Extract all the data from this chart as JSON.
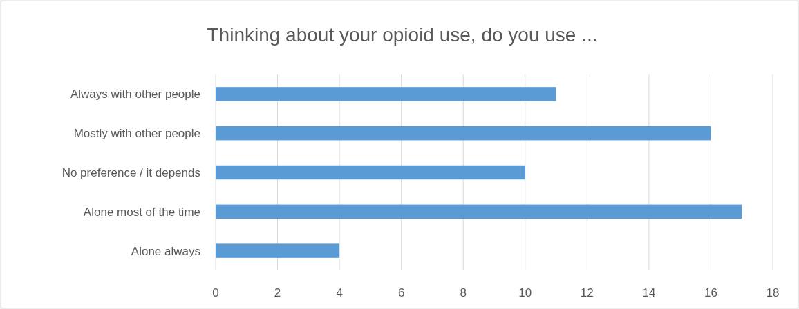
{
  "chart_data": {
    "type": "bar",
    "orientation": "horizontal",
    "title": "Thinking about your opioid use, do you use ...",
    "categories": [
      "Always with other people",
      "Mostly with other people",
      "No preference / it depends",
      "Alone most of the time",
      "Alone always"
    ],
    "values": [
      11,
      16,
      10,
      17,
      4
    ],
    "color": "#5b9bd5",
    "xlim": [
      0,
      18
    ],
    "xticks": [
      0,
      2,
      4,
      6,
      8,
      10,
      12,
      14,
      16,
      18
    ],
    "grid": "x"
  }
}
